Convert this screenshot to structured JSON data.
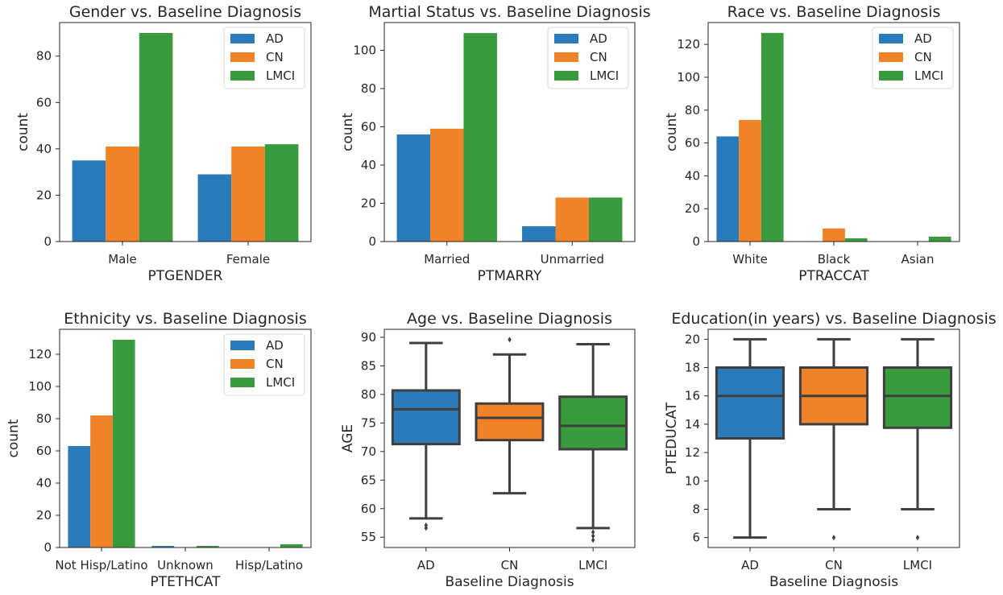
{
  "palette": {
    "AD": "#2b7bba",
    "CN": "#f0822a",
    "LMCI": "#3a9b3e",
    "frame": "#262626",
    "box_line": "#3f3f3f"
  },
  "chart_data": [
    {
      "type": "bar",
      "title": "Gender vs. Baseline Diagnosis",
      "xlabel": "PTGENDER",
      "ylabel": "count",
      "categories": [
        "Male",
        "Female"
      ],
      "series": [
        {
          "name": "AD",
          "values": [
            35,
            29
          ]
        },
        {
          "name": "CN",
          "values": [
            41,
            41
          ]
        },
        {
          "name": "LMCI",
          "values": [
            90,
            42
          ]
        }
      ],
      "ylim": [
        0,
        94.5
      ],
      "yticks": [
        0,
        20,
        40,
        60,
        80
      ],
      "legend": "top-right"
    },
    {
      "type": "bar",
      "title": "Martial Status vs. Baseline Diagnosis",
      "xlabel": "PTMARRY",
      "ylabel": "count",
      "categories": [
        "Married",
        "Unmarried"
      ],
      "series": [
        {
          "name": "AD",
          "values": [
            56,
            8
          ]
        },
        {
          "name": "CN",
          "values": [
            59,
            23
          ]
        },
        {
          "name": "LMCI",
          "values": [
            109,
            23
          ]
        }
      ],
      "ylim": [
        0,
        114.5
      ],
      "yticks": [
        0,
        20,
        40,
        60,
        80,
        100
      ],
      "legend": "top-right"
    },
    {
      "type": "bar",
      "title": "Race vs. Baseline Diagnosis",
      "xlabel": "PTRACCAT",
      "ylabel": "count",
      "categories": [
        "White",
        "Black",
        "Asian"
      ],
      "series": [
        {
          "name": "AD",
          "values": [
            64,
            0,
            0
          ]
        },
        {
          "name": "CN",
          "values": [
            74,
            8,
            0
          ]
        },
        {
          "name": "LMCI",
          "values": [
            127,
            2,
            3
          ]
        }
      ],
      "ylim": [
        0,
        133.3
      ],
      "yticks": [
        0,
        20,
        40,
        60,
        80,
        100,
        120
      ],
      "legend": "top-right"
    },
    {
      "type": "bar",
      "title": "Ethnicity vs. Baseline Diagnosis",
      "xlabel": "PTETHCAT",
      "ylabel": "count",
      "categories": [
        "Not Hisp/Latino",
        "Unknown",
        "Hisp/Latino"
      ],
      "series": [
        {
          "name": "AD",
          "values": [
            63,
            1,
            0
          ]
        },
        {
          "name": "CN",
          "values": [
            82,
            0,
            0
          ]
        },
        {
          "name": "LMCI",
          "values": [
            129,
            1,
            2
          ]
        }
      ],
      "ylim": [
        0,
        135.5
      ],
      "yticks": [
        0,
        20,
        40,
        60,
        80,
        100,
        120
      ],
      "legend": "top-right"
    },
    {
      "type": "box",
      "title": "Age vs. Baseline Diagnosis",
      "xlabel": "Baseline Diagnosis",
      "ylabel": "AGE",
      "categories": [
        "AD",
        "CN",
        "LMCI"
      ],
      "boxes": [
        {
          "whislo": 58.3,
          "q1": 71.3,
          "med": 77.4,
          "q3": 80.7,
          "whishi": 89.0,
          "fliers": [
            56.6,
            57.1
          ]
        },
        {
          "whislo": 62.7,
          "q1": 72.0,
          "med": 75.9,
          "q3": 78.4,
          "whishi": 87.0,
          "fliers": [
            89.6
          ]
        },
        {
          "whislo": 56.6,
          "q1": 70.4,
          "med": 74.5,
          "q3": 79.6,
          "whishi": 88.8,
          "fliers": [
            54.5,
            55.2,
            55.9
          ]
        }
      ],
      "ylim": [
        53.2,
        91.4
      ],
      "yticks": [
        55,
        60,
        65,
        70,
        75,
        80,
        85,
        90
      ]
    },
    {
      "type": "box",
      "title": "Education(in years) vs. Baseline Diagnosis",
      "xlabel": "Baseline Diagnosis",
      "ylabel": "PTEDUCAT",
      "categories": [
        "AD",
        "CN",
        "LMCI"
      ],
      "boxes": [
        {
          "whislo": 6,
          "q1": 13,
          "med": 16,
          "q3": 18,
          "whishi": 20,
          "fliers": []
        },
        {
          "whislo": 8,
          "q1": 14,
          "med": 16,
          "q3": 18,
          "whishi": 20,
          "fliers": [
            6
          ]
        },
        {
          "whislo": 8,
          "q1": 13.75,
          "med": 16,
          "q3": 18,
          "whishi": 20,
          "fliers": [
            6
          ]
        }
      ],
      "ylim": [
        5.3,
        20.7
      ],
      "yticks": [
        6,
        8,
        10,
        12,
        14,
        16,
        18,
        20
      ]
    }
  ]
}
